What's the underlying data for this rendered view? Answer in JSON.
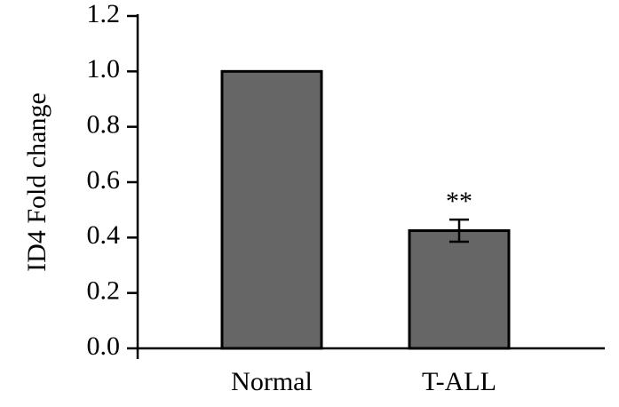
{
  "chart_data": {
    "type": "bar",
    "y_label": "ID4 Fold change",
    "categories": [
      "Normal",
      "T-ALL"
    ],
    "values": [
      1.0,
      0.425
    ],
    "errors": [
      null,
      0.04
    ],
    "significance": [
      null,
      "**"
    ],
    "color": "#666666",
    "ylim": [
      0,
      1.2
    ],
    "yticks": [
      {
        "value": 0,
        "label": "0.0"
      },
      0.2,
      0.4,
      0.6,
      0.8,
      {
        "value": 1,
        "label": "1.0"
      },
      1.2
    ]
  }
}
